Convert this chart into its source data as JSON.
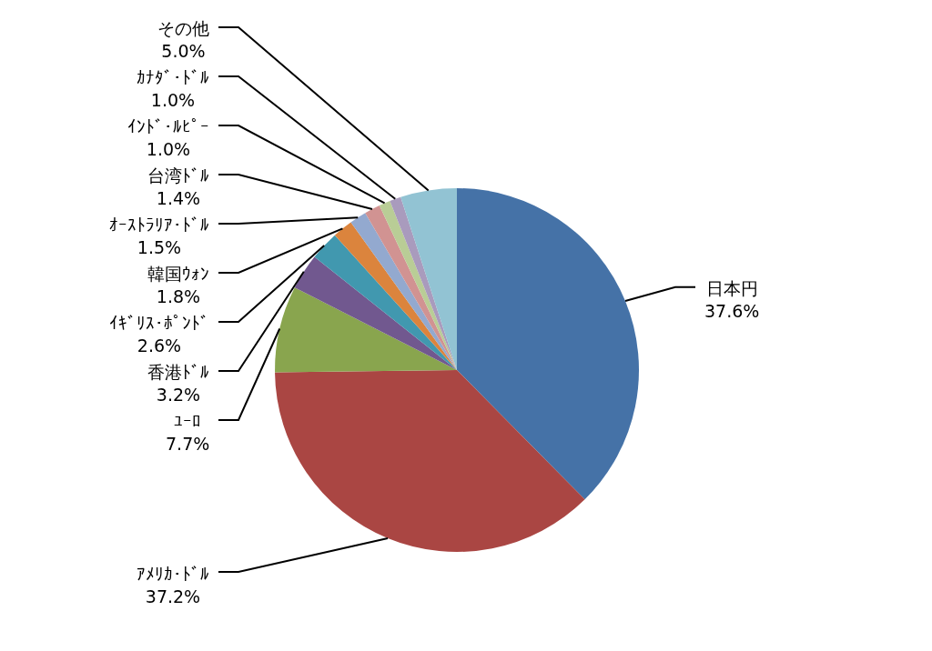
{
  "chart_data": {
    "type": "pie",
    "categories": [
      "日本円",
      "ｱﾒﾘｶ･ﾄﾞﾙ",
      "ﾕｰﾛ",
      "香港ﾄﾞﾙ",
      "ｲｷﾞﾘｽ･ﾎﾟﾝﾄﾞ",
      "韓国ｳｫﾝ",
      "ｵｰｽﾄﾗﾘｱ･ﾄﾞﾙ",
      "台湾ﾄﾞﾙ",
      "ｲﾝﾄﾞ･ﾙﾋﾟｰ",
      "ｶﾅﾀﾞ･ﾄﾞﾙ",
      "その他"
    ],
    "values": [
      37.6,
      37.2,
      7.7,
      3.2,
      2.6,
      1.8,
      1.5,
      1.4,
      1.0,
      1.0,
      5.0
    ],
    "value_labels": [
      "37.6%",
      "37.2%",
      "7.7%",
      "3.2%",
      "2.6%",
      "1.8%",
      "1.5%",
      "1.4%",
      "1.0%",
      "1.0%",
      "5.0%"
    ],
    "colors": [
      "#4572a7",
      "#aa4643",
      "#89a54e",
      "#71588f",
      "#4198af",
      "#db843d",
      "#93a9cf",
      "#d19392",
      "#b9cd96",
      "#a99bbd",
      "#92c3d3"
    ]
  }
}
